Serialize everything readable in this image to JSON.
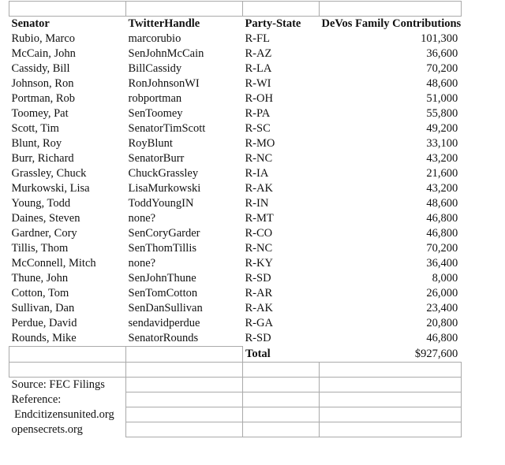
{
  "headers": {
    "senator": "Senator",
    "handle": "TwitterHandle",
    "party_state": "Party-State",
    "contributions": "DeVos Family Contributions"
  },
  "rows": [
    {
      "senator": "Rubio, Marco",
      "handle": "marcorubio",
      "party_state": "R-FL",
      "contributions": "101,300"
    },
    {
      "senator": "McCain, John",
      "handle": "SenJohnMcCain",
      "party_state": "R-AZ",
      "contributions": "36,600"
    },
    {
      "senator": "Cassidy, Bill",
      "handle": "BillCassidy",
      "party_state": "R-LA",
      "contributions": "70,200"
    },
    {
      "senator": "Johnson, Ron",
      "handle": "RonJohnsonWI",
      "party_state": "R-WI",
      "contributions": "48,600"
    },
    {
      "senator": "Portman, Rob",
      "handle": "robportman",
      "party_state": "R-OH",
      "contributions": "51,000"
    },
    {
      "senator": "Toomey, Pat",
      "handle": "SenToomey",
      "party_state": "R-PA",
      "contributions": "55,800"
    },
    {
      "senator": "Scott, Tim",
      "handle": "SenatorTimScott",
      "party_state": "R-SC",
      "contributions": "49,200"
    },
    {
      "senator": "Blunt, Roy",
      "handle": "RoyBlunt",
      "party_state": "R-MO",
      "contributions": "33,100"
    },
    {
      "senator": "Burr, Richard",
      "handle": "SenatorBurr",
      "party_state": "R-NC",
      "contributions": "43,200"
    },
    {
      "senator": "Grassley, Chuck",
      "handle": "ChuckGrassley",
      "party_state": "R-IA",
      "contributions": "21,600"
    },
    {
      "senator": "Murkowski, Lisa",
      "handle": "LisaMurkowski",
      "party_state": "R-AK",
      "contributions": "43,200"
    },
    {
      "senator": "Young, Todd",
      "handle": "ToddYoungIN",
      "party_state": "R-IN",
      "contributions": "48,600"
    },
    {
      "senator": "Daines, Steven",
      "handle": "none?",
      "party_state": "R-MT",
      "contributions": "46,800"
    },
    {
      "senator": "Gardner, Cory",
      "handle": "SenCoryGarder",
      "party_state": "R-CO",
      "contributions": "46,800"
    },
    {
      "senator": "Tillis, Thom",
      "handle": "SenThomTillis",
      "party_state": "R-NC",
      "contributions": "70,200"
    },
    {
      "senator": "McConnell, Mitch",
      "handle": "none?",
      "party_state": "R-KY",
      "contributions": "36,400"
    },
    {
      "senator": "Thune, John",
      "handle": "SenJohnThune",
      "party_state": "R-SD",
      "contributions": "8,000"
    },
    {
      "senator": "Cotton, Tom",
      "handle": "SenTomCotton",
      "party_state": "R-AR",
      "contributions": "26,000"
    },
    {
      "senator": "Sullivan, Dan",
      "handle": "SenDanSullivan",
      "party_state": "R-AK",
      "contributions": "23,400"
    },
    {
      "senator": "Perdue, David",
      "handle": "sendavidperdue",
      "party_state": "R-GA",
      "contributions": "20,800"
    },
    {
      "senator": "Rounds, Mike",
      "handle": "SenatorRounds",
      "party_state": "R-SD",
      "contributions": "46,800"
    }
  ],
  "total": {
    "label": "Total",
    "value": "$927,600"
  },
  "notes": [
    "Source: FEC Filings",
    "Reference:",
    " Endcitizensunited.org",
    "opensecrets.org"
  ]
}
